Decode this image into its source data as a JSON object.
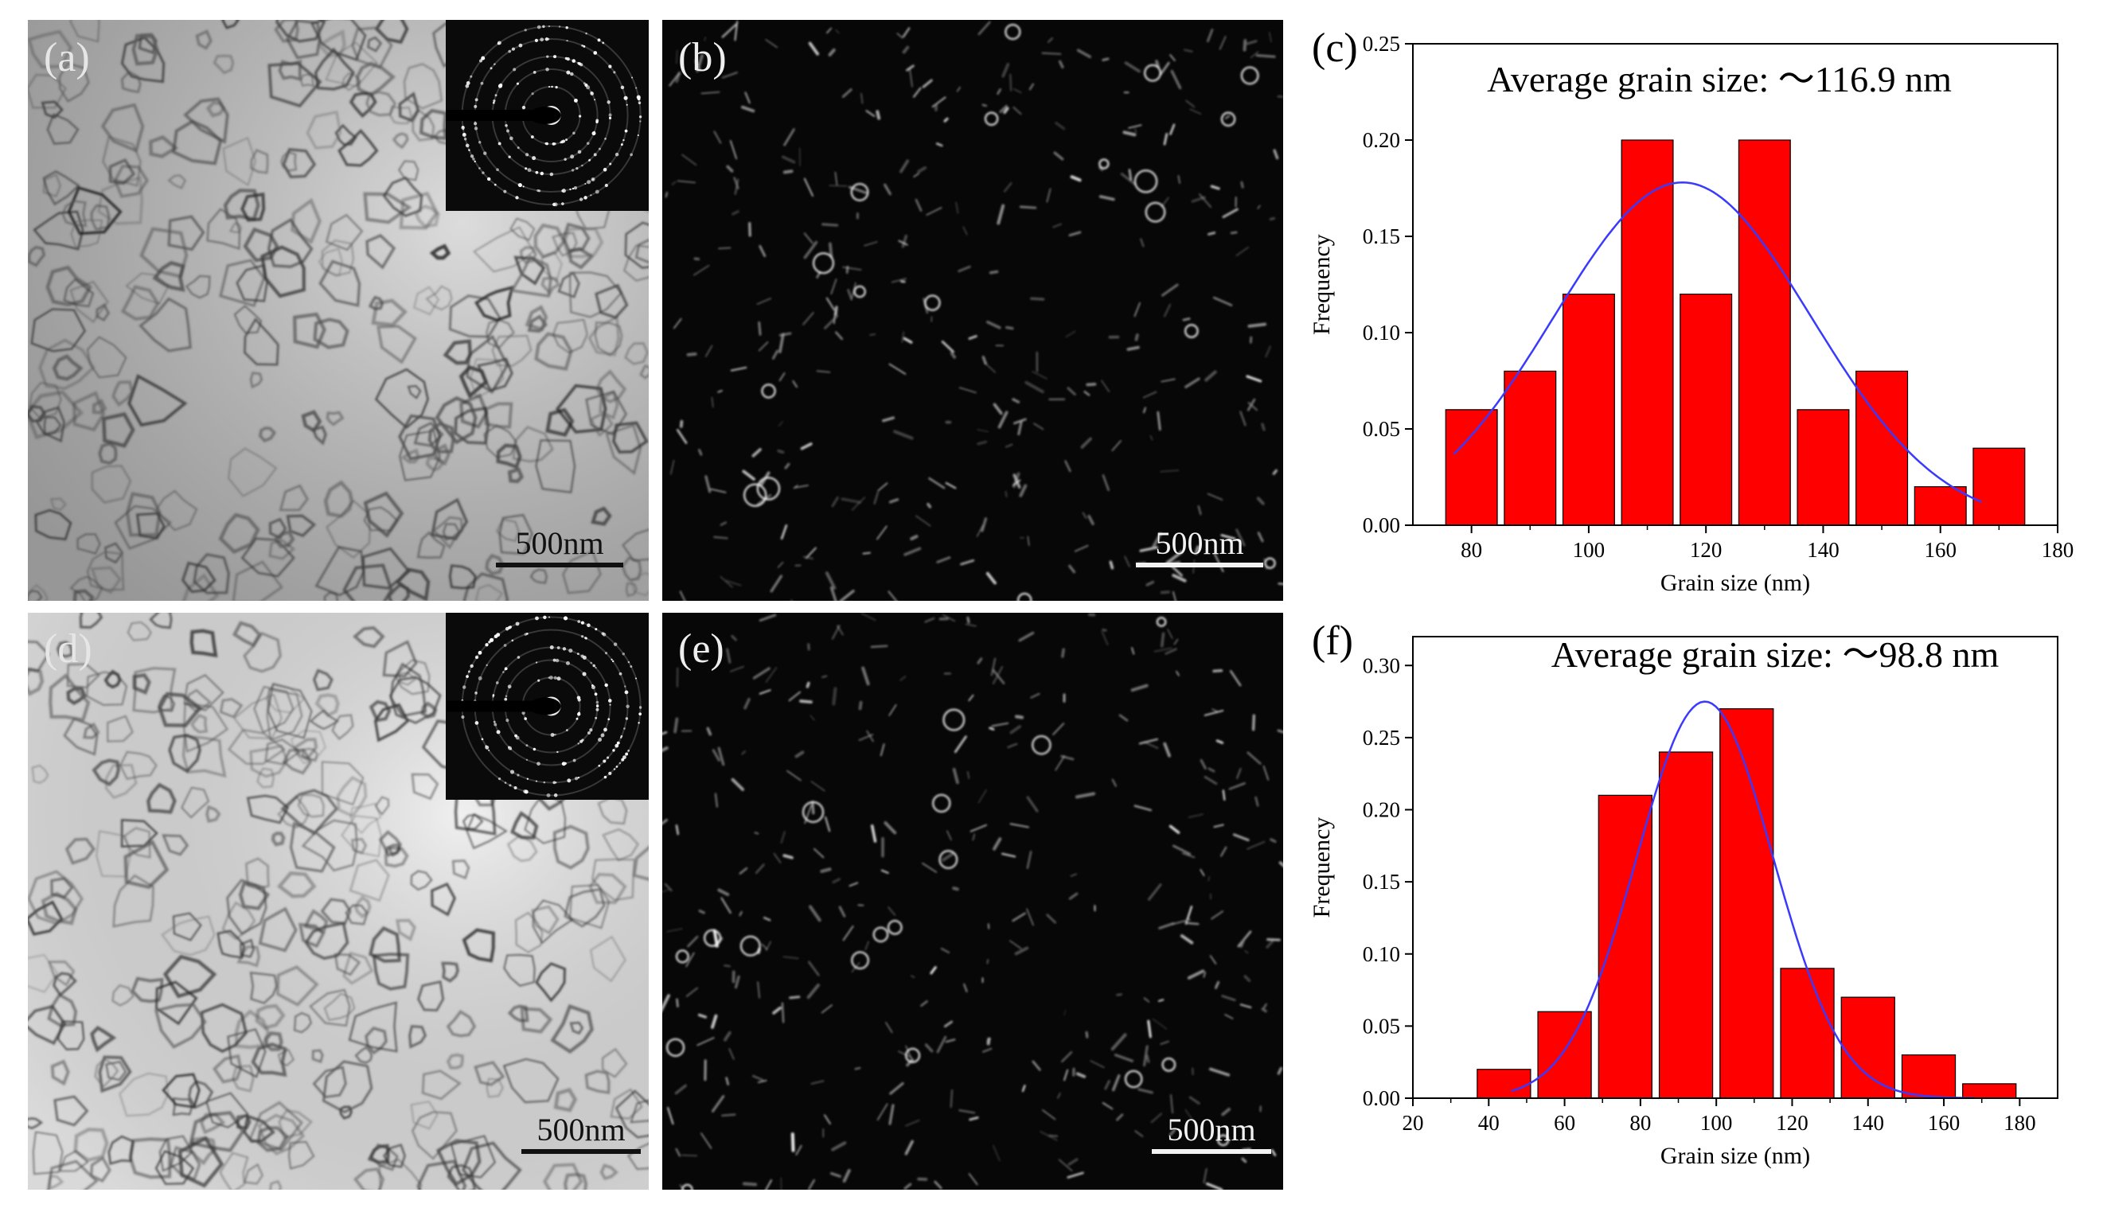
{
  "panels": {
    "a": {
      "label": "(a)",
      "scale_bar": "500nm",
      "mode": "bright-field",
      "inset": "SAED ring pattern"
    },
    "b": {
      "label": "(b)",
      "scale_bar": "500nm",
      "mode": "dark-field"
    },
    "d": {
      "label": "(d)",
      "scale_bar": "500nm",
      "mode": "bright-field",
      "inset": "SAED ring pattern"
    },
    "e": {
      "label": "(e)",
      "scale_bar": "500nm",
      "mode": "dark-field"
    }
  },
  "colors": {
    "bar": "#ff0000",
    "fit": "#3a3aff",
    "axis": "#000000"
  },
  "chart_data": [
    {
      "panel_label": "(c)",
      "type": "bar",
      "title": "Average grain size: ～116.9 nm",
      "xlabel": "Grain size (nm)",
      "ylabel": "Frequency",
      "xlim": [
        70,
        180
      ],
      "ylim": [
        0,
        0.25
      ],
      "bin_width": 10,
      "x_ticks": [
        80,
        100,
        120,
        140,
        160,
        180
      ],
      "y_ticks": [
        0.0,
        0.05,
        0.1,
        0.15,
        0.2,
        0.25
      ],
      "bin_centers": [
        80,
        90,
        100,
        110,
        120,
        130,
        140,
        150,
        160,
        170
      ],
      "values": [
        0.06,
        0.08,
        0.12,
        0.2,
        0.12,
        0.2,
        0.06,
        0.08,
        0.02,
        0.04
      ],
      "fit": {
        "type": "gaussian",
        "mean": 116,
        "sigma": 22,
        "peak": 0.178,
        "x_range": [
          77,
          167
        ]
      }
    },
    {
      "panel_label": "(f)",
      "type": "bar",
      "title": "Average grain size: ～98.8 nm",
      "xlabel": "Grain size (nm)",
      "ylabel": "Frequency",
      "xlim": [
        20,
        190
      ],
      "ylim": [
        0,
        0.32
      ],
      "bin_width": 16,
      "x_ticks": [
        20,
        40,
        60,
        80,
        100,
        120,
        140,
        160,
        180
      ],
      "y_ticks": [
        0.0,
        0.05,
        0.1,
        0.15,
        0.2,
        0.25,
        0.3
      ],
      "bin_centers": [
        44,
        60,
        76,
        92,
        108,
        124,
        140,
        156,
        172
      ],
      "values": [
        0.02,
        0.06,
        0.21,
        0.24,
        0.27,
        0.09,
        0.07,
        0.03,
        0.01
      ],
      "fit": {
        "type": "gaussian",
        "mean": 97,
        "sigma": 18,
        "peak": 0.275,
        "x_range": [
          46,
          168
        ]
      }
    }
  ]
}
